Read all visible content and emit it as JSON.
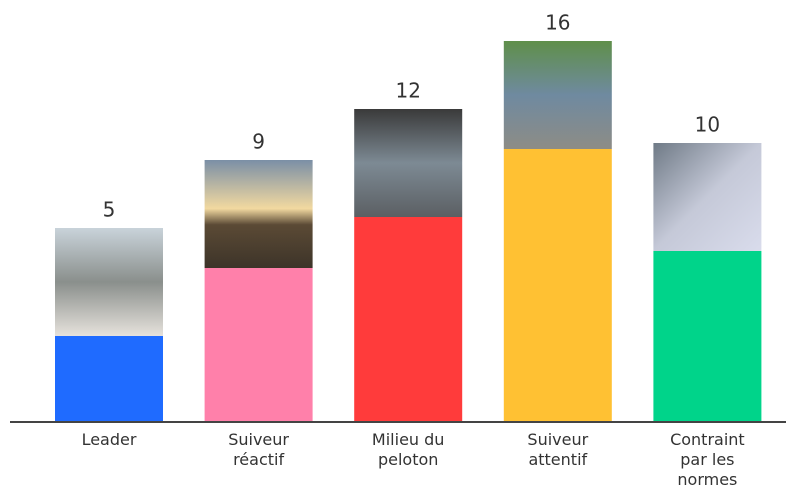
{
  "chart_data": {
    "type": "bar",
    "categories": [
      "Leader",
      "Suiveur réactif",
      "Milieu du peloton",
      "Suiveur attentif",
      "Contraint par les normes"
    ],
    "values": [
      5,
      9,
      12,
      16,
      10
    ],
    "colors": [
      "#1f6bff",
      "#ff80aa",
      "#ff3b3b",
      "#ffc133",
      "#00d48a"
    ]
  }
}
